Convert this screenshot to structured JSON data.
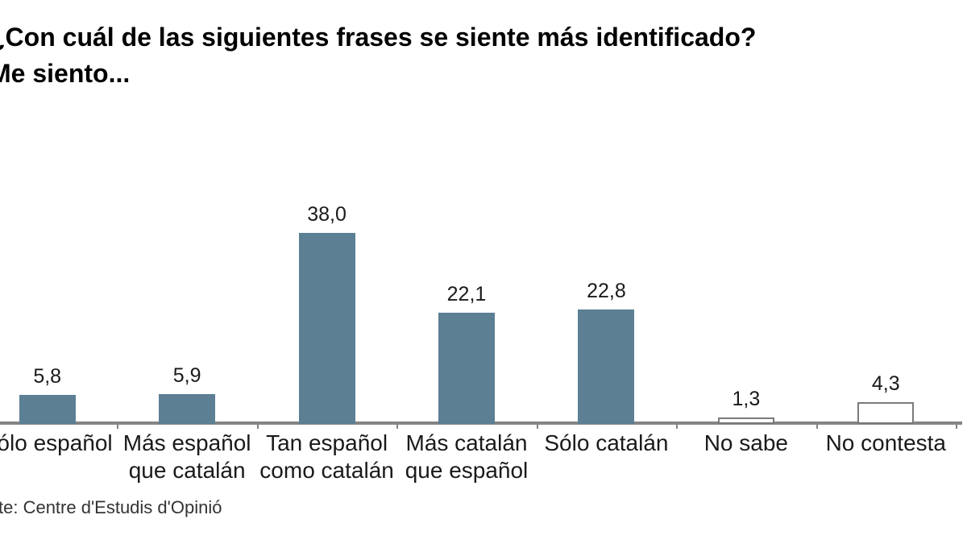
{
  "title": {
    "line1": "¿Con cuál de las siguientes frases se siente más identificado?",
    "line2": "Me siento..."
  },
  "footer": {
    "source": "te: Centre d'Estudis d'Opinió"
  },
  "chart_data": {
    "type": "bar",
    "title": "¿Con cuál de las siguientes frases se siente más identificado? Me siento...",
    "source_note": "te: Centre d'Estudis d'Opinió",
    "categories": [
      "Sólo español",
      "Más español que catalán",
      "Tan español como catalán",
      "Más catalán que español",
      "Sólo catalán",
      "No sabe",
      "No contesta"
    ],
    "category_label_lines": [
      [
        "Sólo español"
      ],
      [
        "Más español",
        "que catalán"
      ],
      [
        "Tan español",
        "como catalán"
      ],
      [
        "Más catalán",
        "que español"
      ],
      [
        "Sólo catalán"
      ],
      [
        "No sabe"
      ],
      [
        "No contesta"
      ]
    ],
    "values": [
      5.8,
      5.9,
      38.0,
      22.1,
      22.8,
      1.3,
      4.3
    ],
    "value_labels": [
      "5,8",
      "5,9",
      "38,0",
      "22,1",
      "22,8",
      "1,3",
      "4,3"
    ],
    "bar_styles": [
      "filled",
      "filled",
      "filled",
      "filled",
      "filled",
      "outline",
      "outline"
    ],
    "colors": {
      "bar_fill": "#5c7f94",
      "bar_outline_border": "#7a7a7a",
      "axis": "#848484",
      "label_text": "#1a1a1a"
    },
    "xlabel": "",
    "ylabel": "",
    "ylim": [
      0,
      40
    ],
    "grid": false,
    "legend": "none",
    "unit": "percent"
  }
}
